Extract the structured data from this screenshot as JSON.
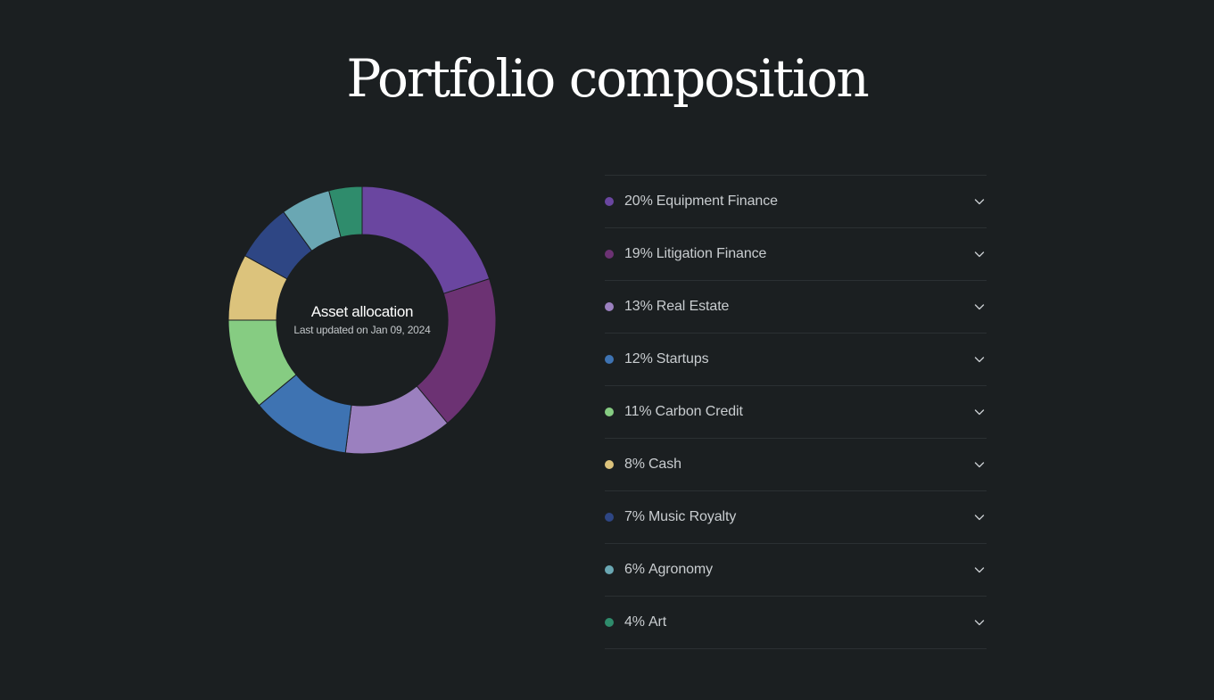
{
  "page": {
    "title": "Portfolio composition"
  },
  "donut": {
    "title": "Asset allocation",
    "subtitle": "Last updated on Jan 09, 2024"
  },
  "icons": {
    "expand": "chevron-down-icon"
  },
  "chart_data": {
    "type": "pie",
    "variant": "donut",
    "title": "Asset allocation",
    "subtitle": "Last updated on Jan 09, 2024",
    "unit": "%",
    "legend_placement": "right",
    "slices": [
      {
        "label": "Equipment Finance",
        "value": 20,
        "display": "20%",
        "color": "#6a46a0"
      },
      {
        "label": "Litigation Finance",
        "value": 19,
        "display": "19%",
        "color": "#6c3273"
      },
      {
        "label": "Real Estate",
        "value": 13,
        "display": "13%",
        "color": "#9b80bf"
      },
      {
        "label": "Startups",
        "value": 12,
        "display": "12%",
        "color": "#3e73b2"
      },
      {
        "label": "Carbon Credit",
        "value": 11,
        "display": "11%",
        "color": "#86cc82"
      },
      {
        "label": "Cash",
        "value": 8,
        "display": "8%",
        "color": "#dcc37c"
      },
      {
        "label": "Music Royalty",
        "value": 7,
        "display": "7%",
        "color": "#2e4684"
      },
      {
        "label": "Agronomy",
        "value": 6,
        "display": "6%",
        "color": "#6aa7b3"
      },
      {
        "label": "Art",
        "value": 4,
        "display": "4%",
        "color": "#2f8c6c"
      }
    ]
  }
}
